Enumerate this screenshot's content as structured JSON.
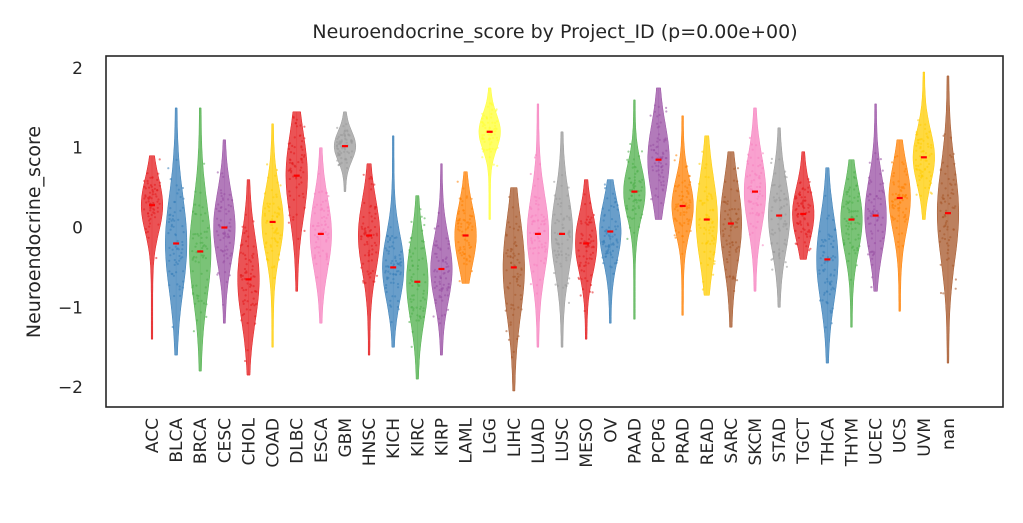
{
  "chart_data": {
    "type": "violin",
    "title": "Neuroendocrine_score by Project_ID  (p=0.00e+00)",
    "xlabel": "",
    "ylabel": "Neuroendocrine_score",
    "ylim": [
      -2.25,
      2.15
    ],
    "yticks": [
      2,
      1,
      0,
      -1,
      -2
    ],
    "ytick_labels": [
      "2",
      "1",
      "0",
      "−1",
      "−2"
    ],
    "grid": false,
    "legend": "none",
    "median_color": "#ff0000",
    "groups": [
      {
        "name": "ACC",
        "color": "#e41a1c",
        "median": 0.28,
        "q1": 0.05,
        "q3": 0.5,
        "min": -1.4,
        "max": 0.9
      },
      {
        "name": "BLCA",
        "color": "#377eb8",
        "median": -0.2,
        "q1": -0.6,
        "q3": 0.2,
        "min": -1.6,
        "max": 1.5
      },
      {
        "name": "BRCA",
        "color": "#4daf4a",
        "median": -0.3,
        "q1": -0.7,
        "q3": 0.1,
        "min": -1.8,
        "max": 1.5
      },
      {
        "name": "CESC",
        "color": "#984ea3",
        "median": 0.0,
        "q1": -0.3,
        "q3": 0.3,
        "min": -1.2,
        "max": 1.1
      },
      {
        "name": "CHOL",
        "color": "#e41a1c",
        "median": -0.65,
        "q1": -1.0,
        "q3": -0.3,
        "min": -1.85,
        "max": 0.6
      },
      {
        "name": "COAD",
        "color": "#ffcc00",
        "median": 0.07,
        "q1": -0.2,
        "q3": 0.35,
        "min": -1.5,
        "max": 1.3
      },
      {
        "name": "DLBC",
        "color": "#e41a1c",
        "median": 0.65,
        "q1": 0.3,
        "q3": 1.0,
        "min": -0.8,
        "max": 1.45
      },
      {
        "name": "ESCA",
        "color": "#f781bf",
        "median": -0.08,
        "q1": -0.4,
        "q3": 0.2,
        "min": -1.2,
        "max": 1.0
      },
      {
        "name": "GBM",
        "color": "#999999",
        "median": 1.02,
        "q1": 0.9,
        "q3": 1.15,
        "min": 0.45,
        "max": 1.45
      },
      {
        "name": "HNSC",
        "color": "#e41a1c",
        "median": -0.1,
        "q1": -0.4,
        "q3": 0.2,
        "min": -1.6,
        "max": 0.8
      },
      {
        "name": "KICH",
        "color": "#377eb8",
        "median": -0.5,
        "q1": -0.75,
        "q3": -0.2,
        "min": -1.5,
        "max": 1.15
      },
      {
        "name": "KIRC",
        "color": "#4daf4a",
        "median": -0.68,
        "q1": -1.0,
        "q3": -0.35,
        "min": -1.9,
        "max": 0.4
      },
      {
        "name": "KIRP",
        "color": "#984ea3",
        "median": -0.52,
        "q1": -0.8,
        "q3": -0.25,
        "min": -1.6,
        "max": 0.8
      },
      {
        "name": "LAML",
        "color": "#ff7f00",
        "median": -0.1,
        "q1": -0.35,
        "q3": 0.15,
        "min": -0.7,
        "max": 0.7
      },
      {
        "name": "LGG",
        "color": "#ffff33",
        "median": 1.2,
        "q1": 1.05,
        "q3": 1.35,
        "min": 0.1,
        "max": 1.75
      },
      {
        "name": "LIHC",
        "color": "#a65628",
        "median": -0.5,
        "q1": -0.9,
        "q3": -0.1,
        "min": -2.05,
        "max": 0.5
      },
      {
        "name": "LUAD",
        "color": "#f781bf",
        "median": -0.08,
        "q1": -0.4,
        "q3": 0.25,
        "min": -1.5,
        "max": 1.55
      },
      {
        "name": "LUSC",
        "color": "#999999",
        "median": -0.08,
        "q1": -0.4,
        "q3": 0.25,
        "min": -1.5,
        "max": 1.2
      },
      {
        "name": "MESO",
        "color": "#e41a1c",
        "median": -0.2,
        "q1": -0.45,
        "q3": 0.05,
        "min": -1.4,
        "max": 0.6
      },
      {
        "name": "OV",
        "color": "#377eb8",
        "median": -0.05,
        "q1": -0.3,
        "q3": 0.2,
        "min": -1.2,
        "max": 0.6
      },
      {
        "name": "PAAD",
        "color": "#4daf4a",
        "median": 0.45,
        "q1": 0.2,
        "q3": 0.65,
        "min": -1.15,
        "max": 1.6
      },
      {
        "name": "PCPG",
        "color": "#984ea3",
        "median": 0.85,
        "q1": 0.55,
        "q3": 1.15,
        "min": 0.1,
        "max": 1.75
      },
      {
        "name": "PRAD",
        "color": "#ff7f00",
        "median": 0.27,
        "q1": 0.05,
        "q3": 0.5,
        "min": -1.1,
        "max": 1.4
      },
      {
        "name": "READ",
        "color": "#ffcc00",
        "median": 0.1,
        "q1": -0.25,
        "q3": 0.45,
        "min": -0.85,
        "max": 1.15
      },
      {
        "name": "SARC",
        "color": "#a65628",
        "median": 0.05,
        "q1": -0.3,
        "q3": 0.4,
        "min": -1.25,
        "max": 0.95
      },
      {
        "name": "SKCM",
        "color": "#f781bf",
        "median": 0.45,
        "q1": 0.15,
        "q3": 0.75,
        "min": -0.8,
        "max": 1.5
      },
      {
        "name": "STAD",
        "color": "#999999",
        "median": 0.15,
        "q1": -0.15,
        "q3": 0.45,
        "min": -1.0,
        "max": 1.25
      },
      {
        "name": "TGCT",
        "color": "#e41a1c",
        "median": 0.17,
        "q1": -0.05,
        "q3": 0.4,
        "min": -0.4,
        "max": 0.95
      },
      {
        "name": "THCA",
        "color": "#377eb8",
        "median": -0.4,
        "q1": -0.75,
        "q3": -0.05,
        "min": -1.7,
        "max": 0.75
      },
      {
        "name": "THYM",
        "color": "#4daf4a",
        "median": 0.1,
        "q1": -0.2,
        "q3": 0.35,
        "min": -1.25,
        "max": 0.85
      },
      {
        "name": "UCEC",
        "color": "#984ea3",
        "median": 0.15,
        "q1": -0.15,
        "q3": 0.45,
        "min": -0.8,
        "max": 1.55
      },
      {
        "name": "UCS",
        "color": "#ff7f00",
        "median": 0.37,
        "q1": 0.1,
        "q3": 0.65,
        "min": -1.05,
        "max": 1.1
      },
      {
        "name": "UVM",
        "color": "#ffcc00",
        "median": 0.88,
        "q1": 0.65,
        "q3": 1.1,
        "min": 0.1,
        "max": 1.95
      },
      {
        "name": "nan",
        "color": "#a65628",
        "median": 0.18,
        "q1": -0.2,
        "q3": 0.6,
        "min": -1.7,
        "max": 1.9
      }
    ]
  }
}
